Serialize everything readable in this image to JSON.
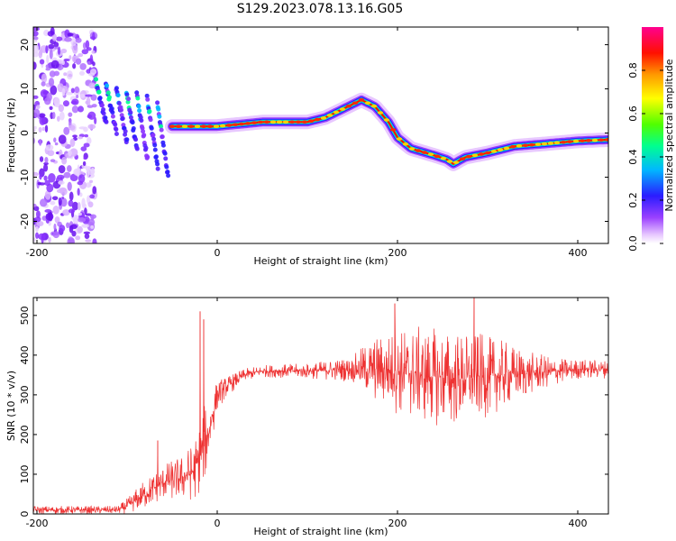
{
  "title": "S129.2023.078.13.16.G05",
  "chart_data": [
    {
      "type": "heatmap",
      "xlabel": "Height of straight line (km)",
      "ylabel": "Frequency (Hz)",
      "xlim": [
        -204,
        434
      ],
      "ylim": [
        -25,
        24
      ],
      "xticks": [
        -200,
        0,
        200,
        400
      ],
      "yticks": [
        -20,
        -10,
        0,
        10,
        20
      ],
      "colorbar": {
        "label": "Normalized spectral amplitude",
        "range": [
          0,
          1
        ],
        "ticks": [
          "0.0",
          "0.2",
          "0.4",
          "0.6",
          "0.8"
        ],
        "colors": [
          "#ffffff",
          "#c070ff",
          "#7020ff",
          "#2020ff",
          "#00c8ff",
          "#00ff80",
          "#60ff00",
          "#ffff00",
          "#ff8000",
          "#ff0000",
          "#ff0090"
        ]
      },
      "ridge": {
        "x": [
          -50,
          -20,
          0,
          50,
          100,
          120,
          140,
          160,
          175,
          190,
          200,
          215,
          240,
          255,
          262,
          275,
          300,
          330,
          360,
          400,
          434
        ],
        "y": [
          1.5,
          1.5,
          1.5,
          2.5,
          2.5,
          3.5,
          5.5,
          7.5,
          6.0,
          2.5,
          -1.0,
          -3.5,
          -5.0,
          -6.0,
          -7.0,
          -5.5,
          -4.5,
          -3.0,
          -2.5,
          -1.8,
          -1.5
        ]
      },
      "noise_region_x": [
        -204,
        -135
      ],
      "streak_region_x": [
        -135,
        -55
      ]
    },
    {
      "type": "line",
      "xlabel": "Height of straight line (km)",
      "ylabel": "SNR (10 * v/v)",
      "xlim": [
        -204,
        434
      ],
      "ylim": [
        0,
        545
      ],
      "xticks": [
        -200,
        0,
        200,
        400
      ],
      "yticks": [
        0,
        100,
        200,
        300,
        400,
        500
      ],
      "color": "#ee3333",
      "envelope": {
        "x": [
          -204,
          -110,
          -100,
          -80,
          -60,
          -40,
          -25,
          -15,
          -10,
          0,
          10,
          30,
          50,
          100,
          150,
          170,
          200,
          230,
          260,
          290,
          320,
          350,
          380,
          400,
          434
        ],
        "mean": [
          10,
          10,
          20,
          50,
          80,
          90,
          110,
          170,
          200,
          300,
          320,
          350,
          360,
          360,
          365,
          365,
          360,
          350,
          340,
          345,
          350,
          355,
          360,
          365,
          365
        ],
        "amplitude": [
          8,
          8,
          15,
          30,
          35,
          45,
          60,
          80,
          60,
          30,
          20,
          12,
          12,
          15,
          25,
          60,
          85,
          95,
          95,
          85,
          65,
          40,
          25,
          20,
          18
        ]
      },
      "spikes": [
        {
          "x": -66,
          "y": 185
        },
        {
          "x": -19,
          "y": 510
        },
        {
          "x": -15,
          "y": 490
        },
        {
          "x": 197,
          "y": 530
        },
        {
          "x": 285,
          "y": 545
        }
      ]
    }
  ]
}
